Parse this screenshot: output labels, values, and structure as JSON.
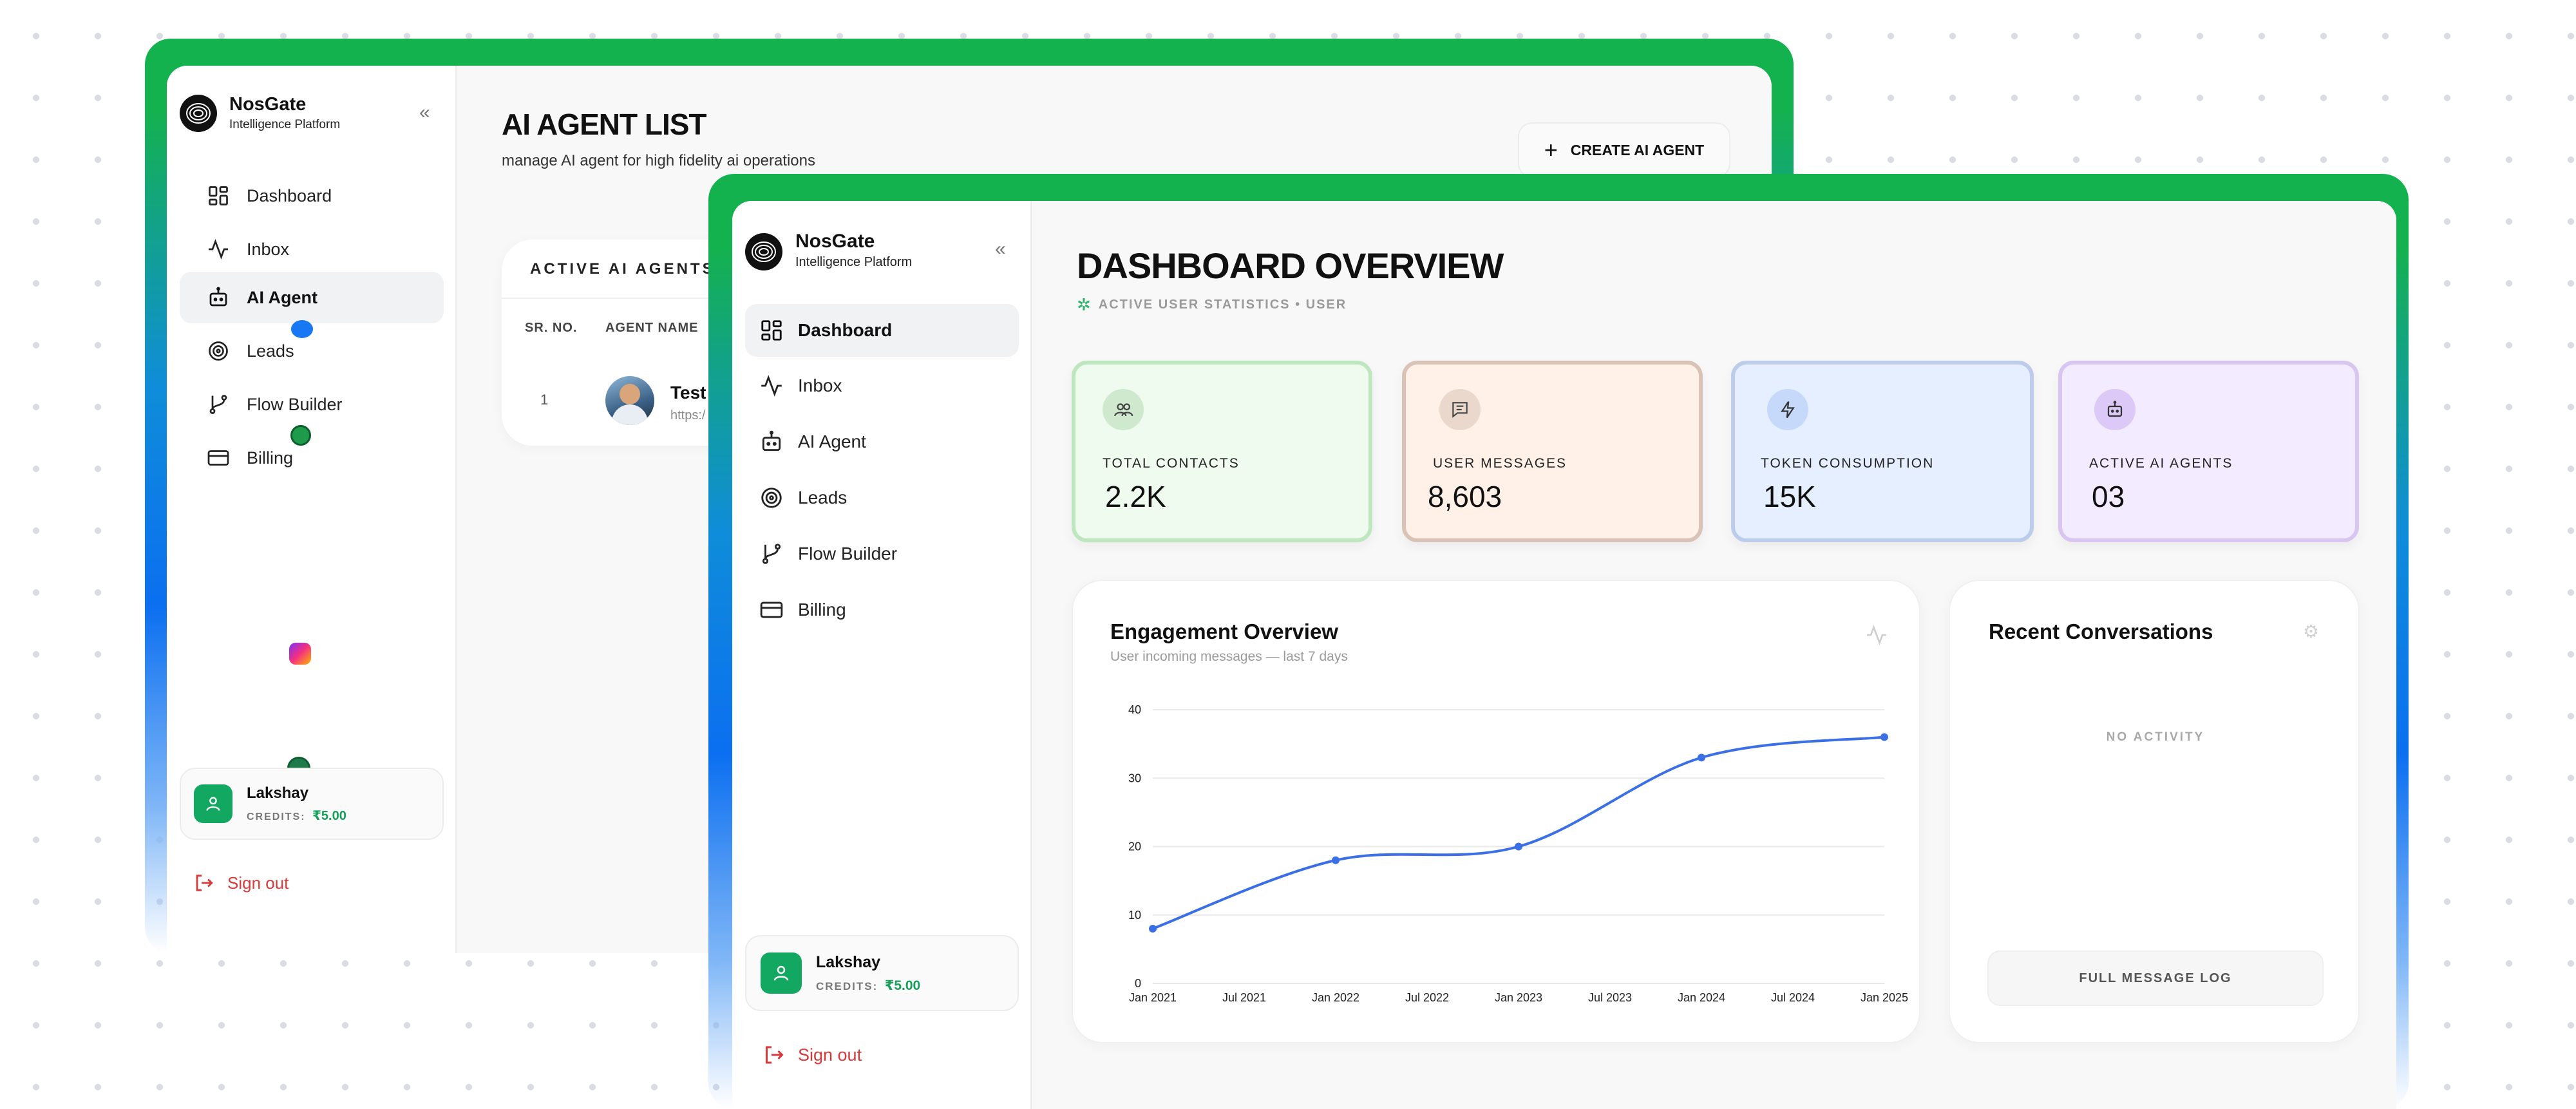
{
  "back_window": {
    "brand": {
      "name": "NosGate",
      "subtitle": "Intelligence Platform"
    },
    "nav": [
      {
        "label": "Dashboard",
        "icon": "dashboard-grid-icon"
      },
      {
        "label": "Inbox",
        "icon": "activity-pulse-icon"
      },
      {
        "label": "AI Agent",
        "icon": "robot-icon",
        "active": true
      },
      {
        "label": "Leads",
        "icon": "target-icon"
      },
      {
        "label": "Flow Builder",
        "icon": "flow-branch-icon"
      },
      {
        "label": "Billing",
        "icon": "credit-card-icon"
      }
    ],
    "page_title": "AI AGENT LIST",
    "page_subtitle": "manage AI agent for high fidelity ai operations",
    "create_button": "CREATE AI AGENT",
    "table": {
      "title": "ACTIVE AI AGENTS (",
      "columns": [
        "SR. NO.",
        "AGENT NAME"
      ],
      "rows": [
        {
          "sr": "1",
          "name": "Test",
          "url": "https:/"
        }
      ]
    },
    "user": {
      "name": "Lakshay",
      "credits_label": "CREDITS:",
      "credits_value": "₹5.00"
    },
    "signout": "Sign out"
  },
  "front_window": {
    "brand": {
      "name": "NosGate",
      "subtitle": "Intelligence Platform"
    },
    "nav": [
      {
        "label": "Dashboard",
        "icon": "dashboard-grid-icon",
        "active": true
      },
      {
        "label": "Inbox",
        "icon": "activity-pulse-icon"
      },
      {
        "label": "AI Agent",
        "icon": "robot-icon"
      },
      {
        "label": "Leads",
        "icon": "target-icon"
      },
      {
        "label": "Flow Builder",
        "icon": "flow-branch-icon"
      },
      {
        "label": "Billing",
        "icon": "credit-card-icon"
      }
    ],
    "page_title": "DASHBOARD OVERVIEW",
    "page_subtitle": "ACTIVE USER STATISTICS • USER",
    "stats": [
      {
        "label": "TOTAL CONTACTS",
        "value": "2.2K",
        "icon": "users-icon",
        "bg": "#eefbee",
        "border": "#bfe7bf",
        "icon_bg": "#cfe9cf"
      },
      {
        "label": "USER MESSAGES",
        "value": "8,603",
        "icon": "message-icon",
        "bg": "#fff1e8",
        "border": "#d9c3b6",
        "icon_bg": "#ead8cc"
      },
      {
        "label": "TOKEN CONSUMPTION",
        "value": "15K",
        "icon": "lightning-icon",
        "bg": "#e5efff",
        "border": "#bcccea",
        "icon_bg": "#c6d9fb"
      },
      {
        "label": "ACTIVE AI AGENTS",
        "value": "03",
        "icon": "robot-icon",
        "bg": "#f3ebff",
        "border": "#d8c6f1",
        "icon_bg": "#dcc9f7"
      }
    ],
    "engagement": {
      "title": "Engagement Overview",
      "subtitle": "User incoming messages — last 7 days"
    },
    "conversations": {
      "title": "Recent Conversations",
      "empty": "NO ACTIVITY",
      "button": "FULL MESSAGE LOG"
    },
    "user": {
      "name": "Lakshay",
      "credits_label": "CREDITS:",
      "credits_value": "₹5.00"
    },
    "signout": "Sign out"
  },
  "chart_data": {
    "type": "line",
    "x": [
      "Jan 2021",
      "Jan 2022",
      "Jan 2023",
      "Jan 2024",
      "Jan 2025"
    ],
    "x_dates": [
      "2021-01",
      "2022-01",
      "2023-01",
      "2024-01",
      "2025-01"
    ],
    "y": [
      8,
      18,
      20,
      33,
      36
    ],
    "x_ticks": [
      "Jan 2021",
      "Jul 2021",
      "Jan 2022",
      "Jul 2022",
      "Jan 2023",
      "Jul 2023",
      "Jan 2024",
      "Jul 2024",
      "Jan 2025"
    ],
    "y_ticks": [
      0,
      10,
      20,
      30,
      40
    ],
    "ylim": [
      0,
      40
    ],
    "grid": true,
    "line_color": "#3b6fe6"
  },
  "colors": {
    "accent_green": "#14b14f",
    "accent_blue": "#0b6ff0",
    "danger": "#d63a3a"
  }
}
